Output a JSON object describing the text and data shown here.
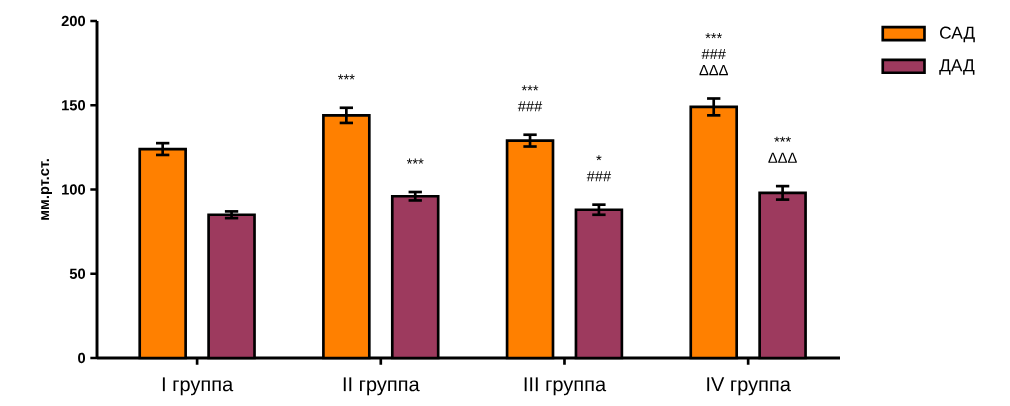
{
  "chart_data": {
    "type": "bar",
    "ylabel": "мм.рт.ст.",
    "categories": [
      "I группа",
      "II группа",
      "III группа",
      "IV группа"
    ],
    "series": [
      {
        "name": "САД",
        "color": "#ff8000",
        "values": [
          124,
          144,
          129,
          149
        ],
        "errors": [
          3.5,
          4.5,
          3.5,
          5
        ]
      },
      {
        "name": "ДАД",
        "color": "#9d3a5e",
        "values": [
          85,
          96,
          88,
          98
        ],
        "errors": [
          2,
          2.5,
          3,
          4
        ]
      }
    ],
    "ylim": [
      0,
      200
    ],
    "yticks": [
      0,
      50,
      100,
      150,
      200
    ],
    "grid": false,
    "legend": "top right",
    "annotations": [
      "***",
      "***",
      "***",
      "###",
      "*",
      "###",
      "***",
      "###",
      "ΔΔΔ",
      "***",
      "ΔΔΔ"
    ]
  }
}
